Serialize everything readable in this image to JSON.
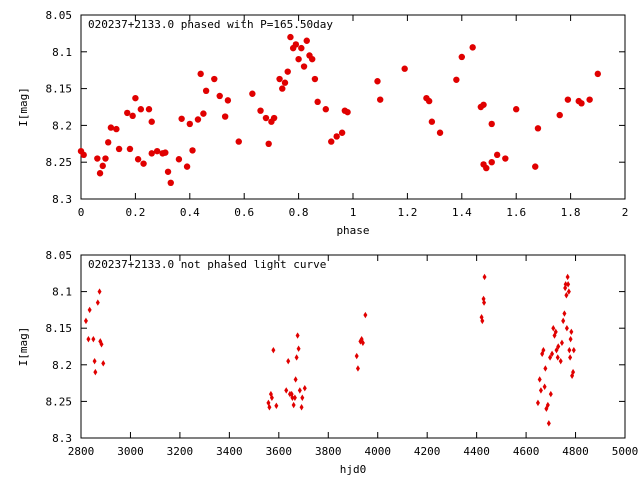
{
  "chart_data": [
    {
      "type": "scatter",
      "title": "020237+2133.0 phased with P=165.50day",
      "xlabel": "phase",
      "ylabel": "I[mag]",
      "xlim": [
        0,
        2
      ],
      "ylim": [
        8.3,
        8.05
      ],
      "y_inverted": true,
      "grid": false,
      "marker": "filled-circle",
      "color": "#e00000",
      "x_ticks": [
        "0",
        "0.2",
        "0.4",
        "0.6",
        "0.8",
        "1",
        "1.2",
        "1.4",
        "1.6",
        "1.8",
        "2"
      ],
      "y_ticks": [
        "8.05",
        "8.1",
        "8.15",
        "8.2",
        "8.25",
        "8.3"
      ],
      "points": [
        [
          0.0,
          8.235
        ],
        [
          0.01,
          8.24
        ],
        [
          0.06,
          8.245
        ],
        [
          0.07,
          8.265
        ],
        [
          0.08,
          8.255
        ],
        [
          0.09,
          8.245
        ],
        [
          0.1,
          8.223
        ],
        [
          0.11,
          8.203
        ],
        [
          0.13,
          8.205
        ],
        [
          0.14,
          8.232
        ],
        [
          0.17,
          8.183
        ],
        [
          0.18,
          8.232
        ],
        [
          0.19,
          8.187
        ],
        [
          0.2,
          8.163
        ],
        [
          0.21,
          8.246
        ],
        [
          0.22,
          8.178
        ],
        [
          0.23,
          8.252
        ],
        [
          0.25,
          8.178
        ],
        [
          0.26,
          8.195
        ],
        [
          0.26,
          8.238
        ],
        [
          0.28,
          8.235
        ],
        [
          0.3,
          8.238
        ],
        [
          0.31,
          8.237
        ],
        [
          0.32,
          8.263
        ],
        [
          0.33,
          8.278
        ],
        [
          0.36,
          8.246
        ],
        [
          0.37,
          8.191
        ],
        [
          0.39,
          8.256
        ],
        [
          0.4,
          8.198
        ],
        [
          0.41,
          8.234
        ],
        [
          0.43,
          8.192
        ],
        [
          0.44,
          8.13
        ],
        [
          0.45,
          8.184
        ],
        [
          0.46,
          8.153
        ],
        [
          0.49,
          8.137
        ],
        [
          0.51,
          8.16
        ],
        [
          0.53,
          8.188
        ],
        [
          0.54,
          8.166
        ],
        [
          0.58,
          8.222
        ],
        [
          0.63,
          8.157
        ],
        [
          0.66,
          8.18
        ],
        [
          0.68,
          8.19
        ],
        [
          0.69,
          8.225
        ],
        [
          0.7,
          8.195
        ],
        [
          0.71,
          8.19
        ],
        [
          0.73,
          8.137
        ],
        [
          0.74,
          8.15
        ],
        [
          0.75,
          8.142
        ],
        [
          0.76,
          8.127
        ],
        [
          0.77,
          8.08
        ],
        [
          0.78,
          8.095
        ],
        [
          0.79,
          8.09
        ],
        [
          0.8,
          8.11
        ],
        [
          0.81,
          8.095
        ],
        [
          0.82,
          8.12
        ],
        [
          0.83,
          8.085
        ],
        [
          0.84,
          8.105
        ],
        [
          0.85,
          8.11
        ],
        [
          0.86,
          8.137
        ],
        [
          0.87,
          8.168
        ],
        [
          0.9,
          8.178
        ],
        [
          0.92,
          8.222
        ],
        [
          0.94,
          8.215
        ],
        [
          0.96,
          8.21
        ],
        [
          0.97,
          8.18
        ],
        [
          0.98,
          8.182
        ],
        [
          1.09,
          8.14
        ],
        [
          1.1,
          8.165
        ],
        [
          1.19,
          8.123
        ],
        [
          1.27,
          8.163
        ],
        [
          1.28,
          8.167
        ],
        [
          1.29,
          8.195
        ],
        [
          1.32,
          8.21
        ],
        [
          1.38,
          8.138
        ],
        [
          1.4,
          8.107
        ],
        [
          1.44,
          8.094
        ],
        [
          1.47,
          8.175
        ],
        [
          1.48,
          8.172
        ],
        [
          1.48,
          8.253
        ],
        [
          1.49,
          8.258
        ],
        [
          1.51,
          8.198
        ],
        [
          1.51,
          8.25
        ],
        [
          1.53,
          8.24
        ],
        [
          1.56,
          8.245
        ],
        [
          1.6,
          8.178
        ],
        [
          1.67,
          8.256
        ],
        [
          1.68,
          8.204
        ],
        [
          1.76,
          8.186
        ],
        [
          1.79,
          8.165
        ],
        [
          1.83,
          8.167
        ],
        [
          1.84,
          8.17
        ],
        [
          1.87,
          8.165
        ],
        [
          1.9,
          8.13
        ]
      ]
    },
    {
      "type": "scatter",
      "title": "020237+2133.0 not phased light curve",
      "xlabel": "hjd0",
      "ylabel": "I[mag]",
      "xlim": [
        2800,
        5000
      ],
      "ylim": [
        8.3,
        8.05
      ],
      "y_inverted": true,
      "grid": false,
      "marker": "small-diamond",
      "color": "#e00000",
      "x_ticks": [
        "2800",
        "3000",
        "3200",
        "3400",
        "3600",
        "3800",
        "4000",
        "4200",
        "4400",
        "4600",
        "4800",
        "5000"
      ],
      "y_ticks": [
        "8.05",
        "8.1",
        "8.15",
        "8.2",
        "8.25",
        "8.3"
      ],
      "points": [
        [
          2820,
          8.14
        ],
        [
          2830,
          8.165
        ],
        [
          2835,
          8.125
        ],
        [
          2850,
          8.165
        ],
        [
          2855,
          8.195
        ],
        [
          2858,
          8.21
        ],
        [
          2868,
          8.115
        ],
        [
          2875,
          8.1
        ],
        [
          2878,
          8.168
        ],
        [
          2883,
          8.172
        ],
        [
          2890,
          8.198
        ],
        [
          3558,
          8.252
        ],
        [
          3562,
          8.258
        ],
        [
          3568,
          8.24
        ],
        [
          3572,
          8.245
        ],
        [
          3578,
          8.18
        ],
        [
          3590,
          8.256
        ],
        [
          3630,
          8.235
        ],
        [
          3638,
          8.195
        ],
        [
          3645,
          8.24
        ],
        [
          3652,
          8.24
        ],
        [
          3655,
          8.245
        ],
        [
          3660,
          8.255
        ],
        [
          3665,
          8.245
        ],
        [
          3668,
          8.22
        ],
        [
          3672,
          8.19
        ],
        [
          3676,
          8.16
        ],
        [
          3680,
          8.178
        ],
        [
          3685,
          8.235
        ],
        [
          3692,
          8.258
        ],
        [
          3695,
          8.245
        ],
        [
          3705,
          8.232
        ],
        [
          3915,
          8.188
        ],
        [
          3920,
          8.205
        ],
        [
          3930,
          8.168
        ],
        [
          3935,
          8.165
        ],
        [
          3940,
          8.17
        ],
        [
          3950,
          8.132
        ],
        [
          4420,
          8.135
        ],
        [
          4423,
          8.14
        ],
        [
          4428,
          8.11
        ],
        [
          4430,
          8.115
        ],
        [
          4432,
          8.08
        ],
        [
          4648,
          8.252
        ],
        [
          4655,
          8.22
        ],
        [
          4660,
          8.235
        ],
        [
          4665,
          8.185
        ],
        [
          4670,
          8.18
        ],
        [
          4675,
          8.23
        ],
        [
          4678,
          8.205
        ],
        [
          4682,
          8.26
        ],
        [
          4688,
          8.255
        ],
        [
          4692,
          8.28
        ],
        [
          4697,
          8.19
        ],
        [
          4700,
          8.24
        ],
        [
          4705,
          8.185
        ],
        [
          4710,
          8.15
        ],
        [
          4715,
          8.16
        ],
        [
          4720,
          8.155
        ],
        [
          4723,
          8.18
        ],
        [
          4728,
          8.19
        ],
        [
          4730,
          8.175
        ],
        [
          4740,
          8.195
        ],
        [
          4745,
          8.17
        ],
        [
          4750,
          8.14
        ],
        [
          4755,
          8.13
        ],
        [
          4758,
          8.095
        ],
        [
          4760,
          8.09
        ],
        [
          4763,
          8.105
        ],
        [
          4765,
          8.15
        ],
        [
          4768,
          8.08
        ],
        [
          4770,
          8.09
        ],
        [
          4773,
          8.1
        ],
        [
          4775,
          8.18
        ],
        [
          4778,
          8.19
        ],
        [
          4780,
          8.165
        ],
        [
          4783,
          8.155
        ],
        [
          4786,
          8.215
        ],
        [
          4790,
          8.21
        ],
        [
          4793,
          8.18
        ]
      ]
    }
  ]
}
